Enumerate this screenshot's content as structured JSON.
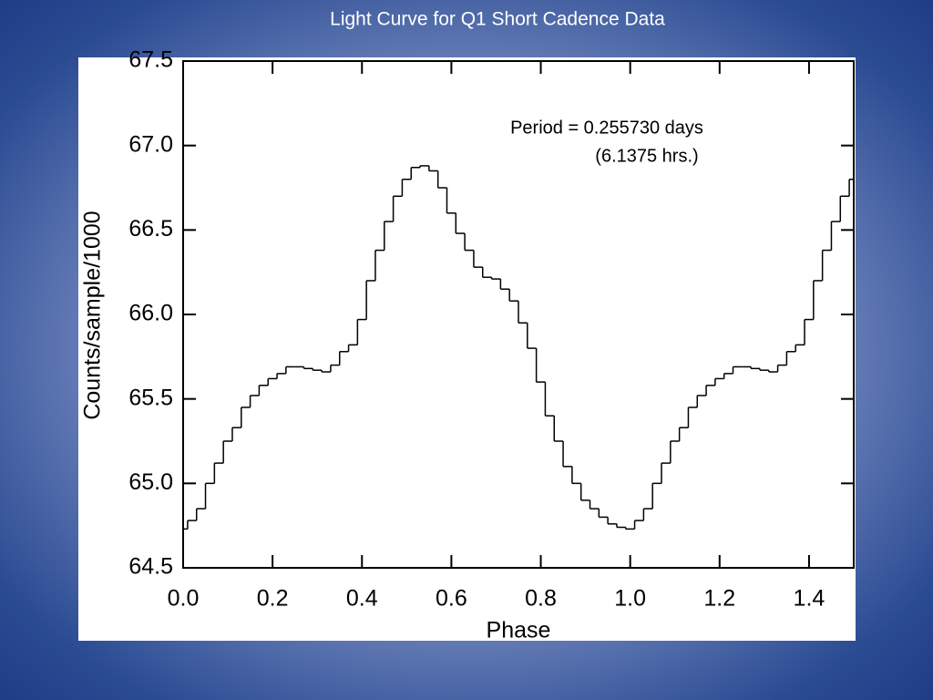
{
  "chart_data": {
    "type": "step",
    "title": "Light Curve for Q1 Short Cadence Data",
    "annotations": [
      "Period = 0.255730 days",
      "(6.1375 hrs.)"
    ],
    "x_label": "Phase",
    "y_label": "Counts/sample/1000",
    "color": "#000000",
    "xlim": [
      0,
      1.5
    ],
    "ylim": [
      64.5,
      67.5
    ],
    "xticks": [
      {
        "value": 0,
        "label": "0.0"
      },
      0.2,
      0.4,
      0.6,
      0.8,
      {
        "value": 1,
        "label": "1.0"
      },
      1.2,
      1.4
    ],
    "yticks": [
      64.5,
      {
        "value": 65,
        "label": "65.0"
      },
      65.5,
      {
        "value": 66,
        "label": "66.0"
      },
      66.5,
      {
        "value": 67,
        "label": "67.0"
      },
      67.5
    ],
    "x": [
      0,
      0.02,
      0.04,
      0.06,
      0.08,
      0.1,
      0.12,
      0.14,
      0.16,
      0.18,
      0.2,
      0.22,
      0.24,
      0.26,
      0.28,
      0.3,
      0.32,
      0.34,
      0.36,
      0.38,
      0.4,
      0.42,
      0.44,
      0.46,
      0.48,
      0.5,
      0.52,
      0.54,
      0.56,
      0.58,
      0.6,
      0.62,
      0.64,
      0.66,
      0.68,
      0.7,
      0.72,
      0.74,
      0.76,
      0.78,
      0.8,
      0.82,
      0.84,
      0.86,
      0.88,
      0.9,
      0.92,
      0.94,
      0.96,
      0.98,
      1.0,
      1.02,
      1.04,
      1.06,
      1.08,
      1.1,
      1.12,
      1.14,
      1.16,
      1.18,
      1.2,
      1.22,
      1.24,
      1.26,
      1.28,
      1.3,
      1.32,
      1.34,
      1.36,
      1.38,
      1.4,
      1.42,
      1.44,
      1.46,
      1.48,
      1.5
    ],
    "values": [
      64.73,
      64.78,
      64.85,
      65.0,
      65.12,
      65.25,
      65.33,
      65.45,
      65.52,
      65.58,
      65.62,
      65.65,
      65.69,
      65.69,
      65.68,
      65.67,
      65.66,
      65.7,
      65.78,
      65.82,
      65.97,
      66.2,
      66.38,
      66.55,
      66.7,
      66.8,
      66.87,
      66.88,
      66.85,
      66.75,
      66.6,
      66.48,
      66.38,
      66.28,
      66.22,
      66.21,
      66.15,
      66.08,
      65.95,
      65.8,
      65.6,
      65.4,
      65.25,
      65.1,
      65.0,
      64.9,
      64.85,
      64.8,
      64.76,
      64.74,
      64.73,
      64.78,
      64.85,
      65.0,
      65.12,
      65.25,
      65.33,
      65.45,
      65.52,
      65.58,
      65.62,
      65.65,
      65.69,
      65.69,
      65.68,
      65.67,
      65.66,
      65.7,
      65.78,
      65.82,
      65.97,
      66.2,
      66.38,
      66.55,
      66.7,
      66.8
    ]
  }
}
